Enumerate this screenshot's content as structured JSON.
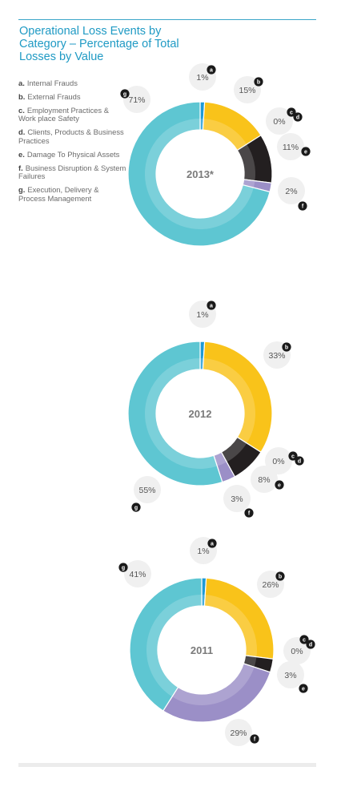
{
  "title": "Operational Loss Events by Category – Percentage of Total Losses by Value",
  "legend": [
    {
      "key": "a.",
      "label": "Internal Frauds"
    },
    {
      "key": "b.",
      "label": "External Frauds"
    },
    {
      "key": "c.",
      "label": "Employment Practices & Work place Safety"
    },
    {
      "key": "d.",
      "label": "Clients, Products & Business Practices"
    },
    {
      "key": "e.",
      "label": "Damage To Physical Assets"
    },
    {
      "key": "f.",
      "label": "Business Disruption & System Failures"
    },
    {
      "key": "g.",
      "label": "Execution, Delivery & Process Management"
    }
  ],
  "colors": {
    "a": "#1f9ad6",
    "b": "#f9c31a",
    "c": "#231f20",
    "d": "#231f20",
    "e": "#231f20",
    "f": "#9b8fc7",
    "g": "#5ec6d2",
    "label_bubble": "#f0f0f0",
    "badge": "#1a1a1a"
  },
  "chart_data": [
    {
      "type": "pie",
      "title": "2013*",
      "categories": [
        "a",
        "b",
        "c",
        "d",
        "e",
        "f",
        "g"
      ],
      "values": [
        1,
        15,
        0,
        0,
        11,
        2,
        71
      ],
      "labels": [
        "1%",
        "15%",
        "0%",
        "0%",
        "11%",
        "2%",
        "71%"
      ]
    },
    {
      "type": "pie",
      "title": "2012",
      "categories": [
        "a",
        "b",
        "c",
        "d",
        "e",
        "f",
        "g"
      ],
      "values": [
        1,
        33,
        0,
        0,
        8,
        3,
        55
      ],
      "labels": [
        "1%",
        "33%",
        "0%",
        "0%",
        "8%",
        "3%",
        "55%"
      ]
    },
    {
      "type": "pie",
      "title": "2011",
      "categories": [
        "a",
        "b",
        "c",
        "d",
        "e",
        "f",
        "g"
      ],
      "values": [
        1,
        26,
        0,
        0,
        3,
        29,
        41
      ],
      "labels": [
        "1%",
        "26%",
        "0%",
        "0%",
        "3%",
        "29%",
        "41%"
      ]
    }
  ]
}
